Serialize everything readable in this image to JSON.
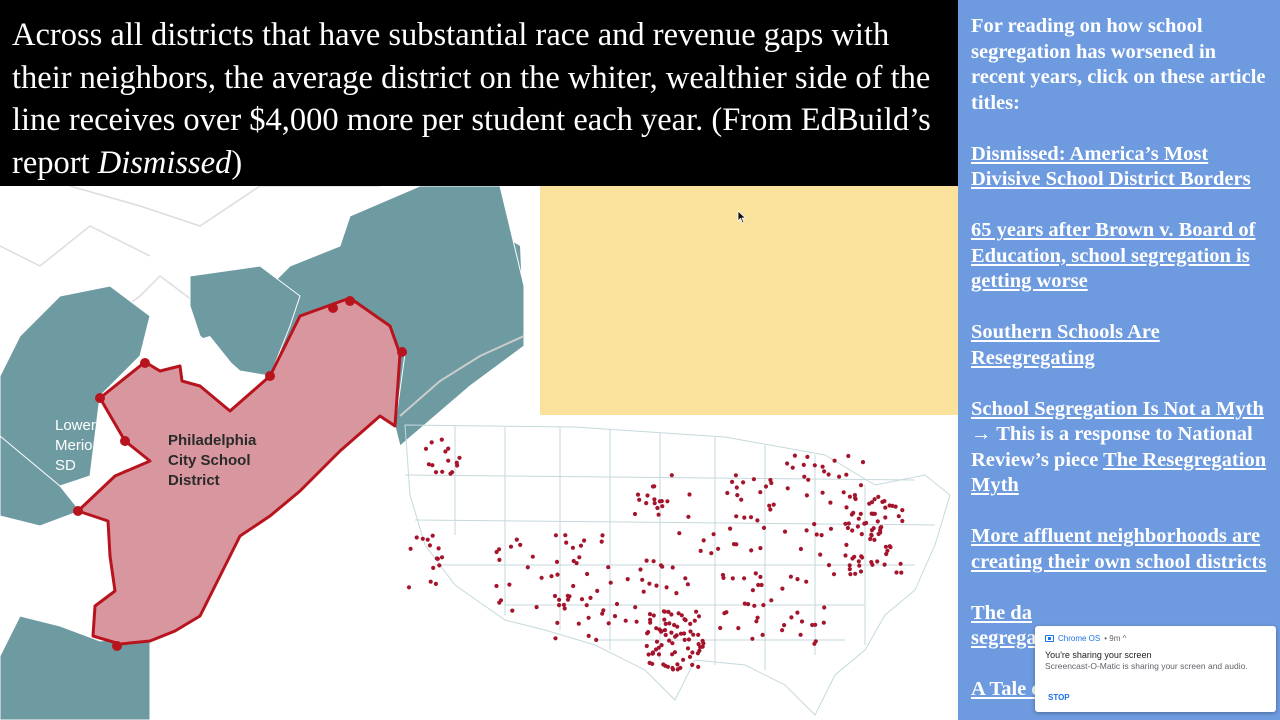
{
  "headline": {
    "text": "Across all districts that have substantial race and revenue gaps with their neighbors, the average district on the whiter, wealthier side of the line receives over $4,000 more per student each year.  (From EdBuild’s report ",
    "emphasis": "Dismissed",
    "suffix": ")"
  },
  "philly_map": {
    "labels": {
      "lower_merion": [
        "Lower",
        "Merion",
        "SD"
      ],
      "philadelphia": [
        "Philadelphia",
        "City School",
        "District"
      ]
    },
    "colors": {
      "city": "#d8969f",
      "neighbors": "#6e9aa2",
      "border": "#b8141e"
    }
  },
  "sidebar": {
    "intro": "For reading on how school segregation has worsened in recent years, click on these article titles:",
    "articles": [
      "Dismissed: America’s Most Divisive School District Borders",
      "65 years after Brown v. Board of Education, school segregation is getting worse",
      "Southern Schools Are Resegregating"
    ],
    "article4": {
      "link": "School Segregation Is Not a Myth",
      "middle": " → This is a response to National Review’s piece ",
      "link2": "The Resegregation Myth"
    },
    "article5": "More affluent neighborhoods are creating their own school districts",
    "article6": "The da",
    "article6b": "segrega",
    "article7": "A Tale of Two School Districts"
  },
  "notification": {
    "app": "Chrome OS",
    "time": "• 9m ^",
    "title": "You're sharing your screen",
    "body": "Screencast-O-Matic is sharing your screen and audio.",
    "action": "STOP"
  },
  "colors": {
    "sidebar_bg": "#6e9be0",
    "yellow": "#fae29c",
    "dot": "#a4152c"
  }
}
